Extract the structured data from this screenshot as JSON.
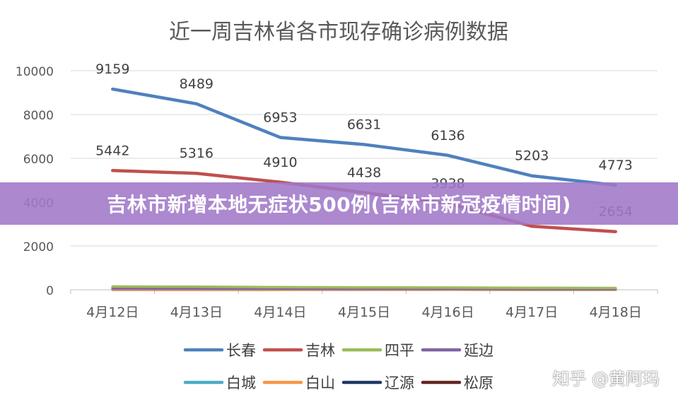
{
  "chart_data": {
    "type": "line",
    "title": "近一周吉林省各市现存确诊病例数据",
    "categories": [
      "4月12日",
      "4月13日",
      "4月14日",
      "4月15日",
      "4月16日",
      "4月17日",
      "4月18日"
    ],
    "ylim": [
      0,
      10000
    ],
    "yticks": [
      0,
      2000,
      4000,
      6000,
      8000,
      10000
    ],
    "grid": true,
    "legend_position": "bottom",
    "series": [
      {
        "name": "长春",
        "color": "#4F81BD",
        "values": [
          9159,
          8489,
          6953,
          6631,
          6136,
          5203,
          4773
        ],
        "labels": [
          "9159",
          "8489",
          "6953",
          "6631",
          "6136",
          "5203",
          "4773"
        ]
      },
      {
        "name": "吉林",
        "color": "#C0504D",
        "values": [
          5442,
          5316,
          4910,
          4438,
          3938,
          2900,
          2654
        ],
        "labels": [
          "5442",
          "5316",
          "4910",
          "4438",
          "3938",
          "",
          "2654"
        ]
      },
      {
        "name": "四平",
        "color": "#9BBB59",
        "values": [
          150,
          140,
          120,
          110,
          100,
          90,
          80
        ],
        "labels": []
      },
      {
        "name": "延边",
        "color": "#8064A2",
        "values": [
          60,
          55,
          50,
          45,
          40,
          35,
          30
        ],
        "labels": []
      },
      {
        "name": "白城",
        "color": "#4BACC6",
        "values": [
          100,
          95,
          90,
          85,
          80,
          75,
          70
        ],
        "labels": []
      },
      {
        "name": "白山",
        "color": "#F79646",
        "values": [
          20,
          20,
          18,
          16,
          14,
          12,
          10
        ],
        "labels": []
      },
      {
        "name": "辽源",
        "color": "#1F3864",
        "values": [
          40,
          38,
          36,
          34,
          32,
          30,
          28
        ],
        "labels": []
      },
      {
        "name": "松原",
        "color": "#632523",
        "values": [
          10,
          10,
          9,
          8,
          7,
          6,
          5
        ],
        "labels": []
      }
    ]
  },
  "overlay": {
    "banner_text": "吉林市新增本地无症状500例(吉林市新冠疫情时间)",
    "watermark": "知乎 @黄阿玛"
  }
}
